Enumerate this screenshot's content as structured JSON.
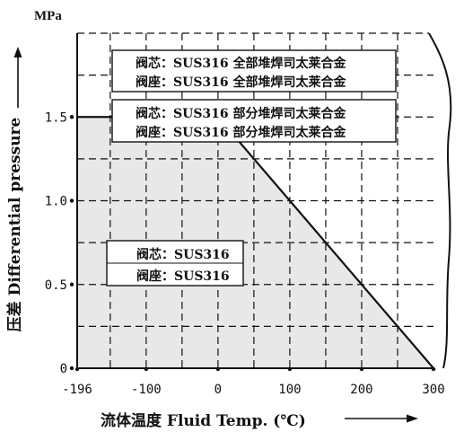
{
  "chart_data": {
    "type": "area",
    "title": "",
    "unit": "MPa",
    "xlabel": "流体温度 Fluid Temp. (℃)",
    "ylabel": "压差 Differential pressure",
    "xlim": [
      -196,
      300
    ],
    "ylim": [
      0,
      2.0
    ],
    "x_ticks": [
      -196,
      -100,
      0,
      100,
      200,
      300
    ],
    "x_tick_labels": [
      "-196",
      "-100",
      "0",
      "100",
      "200",
      "300"
    ],
    "y_ticks": [
      0,
      0.5,
      1.0,
      1.5
    ],
    "y_tick_labels": [
      "0",
      "0.5",
      "1.0",
      "1.5"
    ],
    "grid": true,
    "series": [
      {
        "x": [
          -196,
          0,
          300
        ],
        "y": [
          1.5,
          1.5,
          0
        ]
      }
    ],
    "annotations": [
      {
        "lines": [
          "阀芯：SUS316 全部堆焊司太莱合金",
          "阀座：SUS316 全部堆焊司太莱合金"
        ]
      },
      {
        "lines": [
          "阀芯：SUS316 部分堆焊司太莱合金",
          "阀座：SUS316 部分堆焊司太莱合金"
        ]
      },
      {
        "lines": [
          "阀芯：SUS316",
          "阀座：SUS316"
        ]
      }
    ],
    "colors": {
      "fill": "#e8e8e8",
      "line": "#111111",
      "grid": "#111111",
      "box_bg": "#ffffff"
    }
  }
}
